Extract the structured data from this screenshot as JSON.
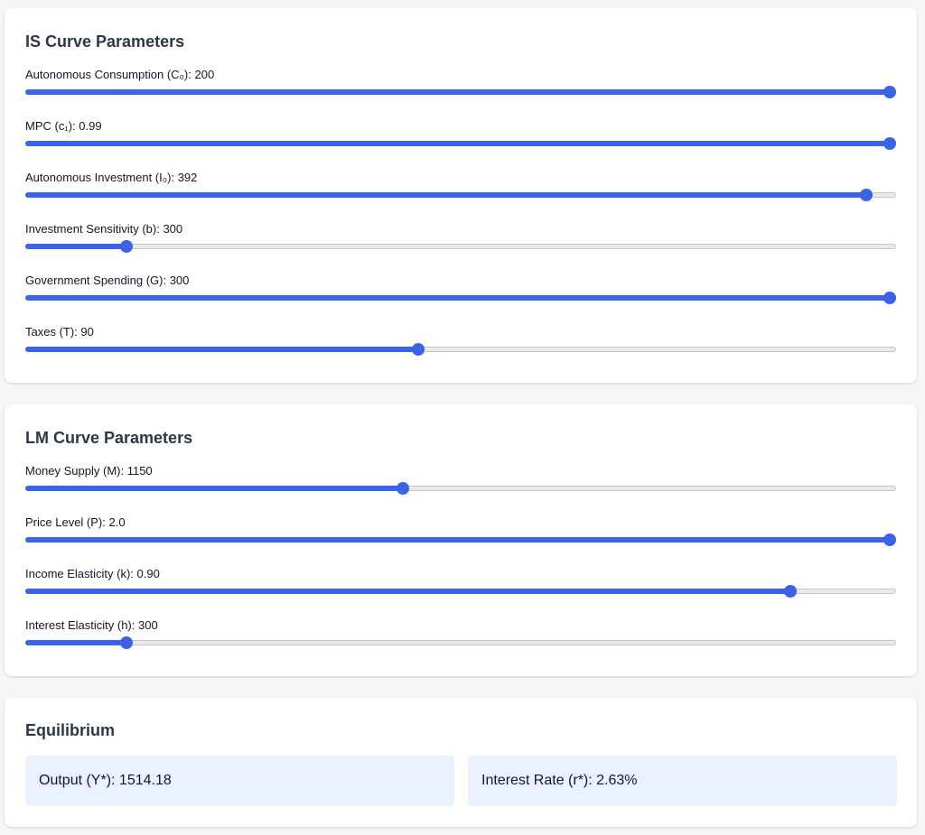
{
  "accent_color": "#3b63e6",
  "is_panel": {
    "title": "IS Curve Parameters",
    "params": [
      {
        "label": "Autonomous Consumption (C₀): 200",
        "fraction": 1.0
      },
      {
        "label": "MPC (c₁): 0.99",
        "fraction": 1.0
      },
      {
        "label": "Autonomous Investment (I₀): 392",
        "fraction": 0.973
      },
      {
        "label": "Investment Sensitivity (b): 300",
        "fraction": 0.111
      },
      {
        "label": "Government Spending (G): 300",
        "fraction": 1.0
      },
      {
        "label": "Taxes (T): 90",
        "fraction": 0.45
      }
    ]
  },
  "lm_panel": {
    "title": "LM Curve Parameters",
    "params": [
      {
        "label": "Money Supply (M): 1150",
        "fraction": 0.433
      },
      {
        "label": "Price Level (P): 2.0",
        "fraction": 1.0
      },
      {
        "label": "Income Elasticity (k): 0.90",
        "fraction": 0.884
      },
      {
        "label": "Interest Elasticity (h): 300",
        "fraction": 0.111
      }
    ]
  },
  "equilibrium": {
    "title": "Equilibrium",
    "output": "Output (Y*): 1514.18",
    "interest_rate": "Interest Rate (r*): 2.63%"
  }
}
